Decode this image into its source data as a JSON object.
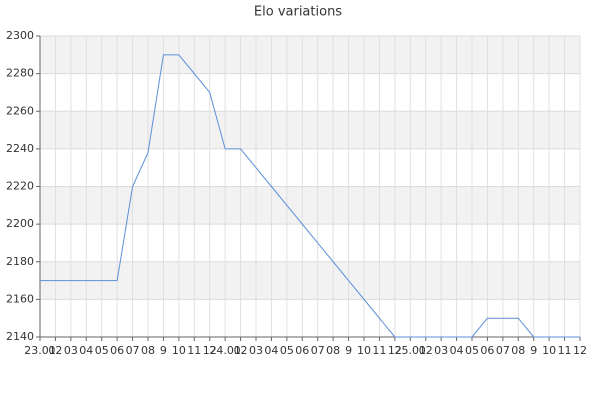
{
  "chart_data": {
    "type": "line",
    "title": "Elo variations",
    "categories": [
      "23.01",
      "02",
      "03",
      "04",
      "05",
      "06",
      "07",
      "08",
      "9",
      "10",
      "11",
      "12",
      "24.01",
      "02",
      "03",
      "04",
      "05",
      "06",
      "07",
      "08",
      "9",
      "10",
      "11",
      "12",
      "25.01",
      "02",
      "03",
      "04",
      "05",
      "06",
      "07",
      "08",
      "9",
      "10",
      "11",
      "12"
    ],
    "series": [
      {
        "name": "Elo",
        "color": "#5b8fd9",
        "values": [
          2170,
          2170,
          2170,
          2170,
          2170,
          2170,
          2220,
          2238,
          2290,
          2290,
          2280,
          2270,
          2240,
          2240,
          2230,
          2220,
          2210,
          2200,
          2190,
          2180,
          2170,
          2160,
          2150,
          2140,
          2140,
          2140,
          2140,
          2140,
          2140,
          2150,
          2150,
          2150,
          2140,
          2140,
          2140,
          2140
        ]
      }
    ],
    "ylim": [
      2140,
      2300
    ],
    "yticks": [
      2140,
      2160,
      2180,
      2200,
      2220,
      2240,
      2260,
      2280,
      2300
    ],
    "grid": true,
    "band_color": "#f2f2f2",
    "legend": false
  }
}
